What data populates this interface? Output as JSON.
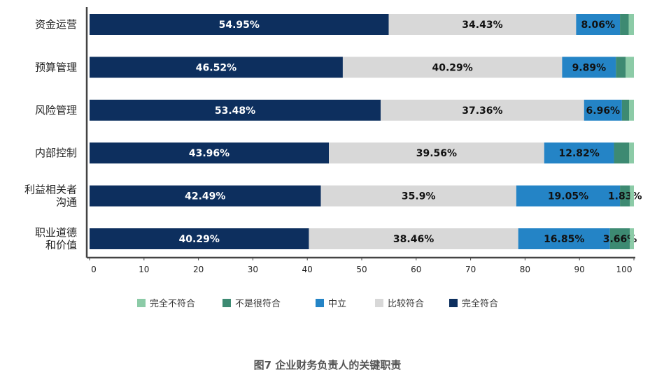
{
  "chart_data": {
    "type": "bar",
    "orientation": "horizontal",
    "stacked": true,
    "title": "图7 企业财务负责人的关键职责",
    "categories": [
      [
        "资金运营"
      ],
      [
        "预算管理"
      ],
      [
        "风险管理"
      ],
      [
        "内部控制"
      ],
      [
        "利益相关者",
        "沟通"
      ],
      [
        "职业道德",
        "和价值"
      ]
    ],
    "series": [
      {
        "name": "完全符合",
        "color": "#0d2f5e",
        "label_color": "#ffffff",
        "values": [
          54.95,
          46.52,
          53.48,
          43.96,
          42.49,
          40.29
        ],
        "labels": [
          "54.95%",
          "46.52%",
          "53.48%",
          "43.96%",
          "42.49%",
          "40.29%"
        ]
      },
      {
        "name": "比较符合",
        "color": "#d8d8d8",
        "label_color": "#111111",
        "values": [
          34.43,
          40.29,
          37.36,
          39.56,
          35.9,
          38.46
        ],
        "labels": [
          "34.43%",
          "40.29%",
          "37.36%",
          "39.56%",
          "35.9%",
          "38.46%"
        ]
      },
      {
        "name": "中立",
        "color": "#2484c6",
        "label_color": "#111111",
        "values": [
          8.06,
          9.89,
          6.96,
          12.82,
          19.05,
          16.85
        ],
        "labels": [
          "8.06%",
          "9.89%",
          "6.96%",
          "12.82%",
          "19.05%",
          "16.85%"
        ]
      },
      {
        "name": "不是很符合",
        "color": "#3d8a72",
        "label_color": "#111111",
        "values": [
          1.6,
          1.8,
          1.3,
          2.8,
          1.83,
          3.66
        ],
        "labels": [
          "",
          "",
          "",
          "",
          "1.83%",
          "3.66%"
        ]
      },
      {
        "name": "完全不符合",
        "color": "#8ccba7",
        "label_color": "#111111",
        "values": [
          0.96,
          1.5,
          0.9,
          0.86,
          0.73,
          0.74
        ],
        "labels": [
          "",
          "",
          "",
          "",
          "",
          ""
        ]
      }
    ],
    "legend_order": [
      "完全不符合",
      "不是很符合",
      "中立",
      "比较符合",
      "完全符合"
    ],
    "legend_position": "bottom",
    "xlim": [
      0,
      100
    ],
    "xticks": [
      "0",
      "10",
      "20",
      "30",
      "40",
      "50",
      "60",
      "70",
      "80",
      "90",
      "100"
    ],
    "grid": false
  }
}
